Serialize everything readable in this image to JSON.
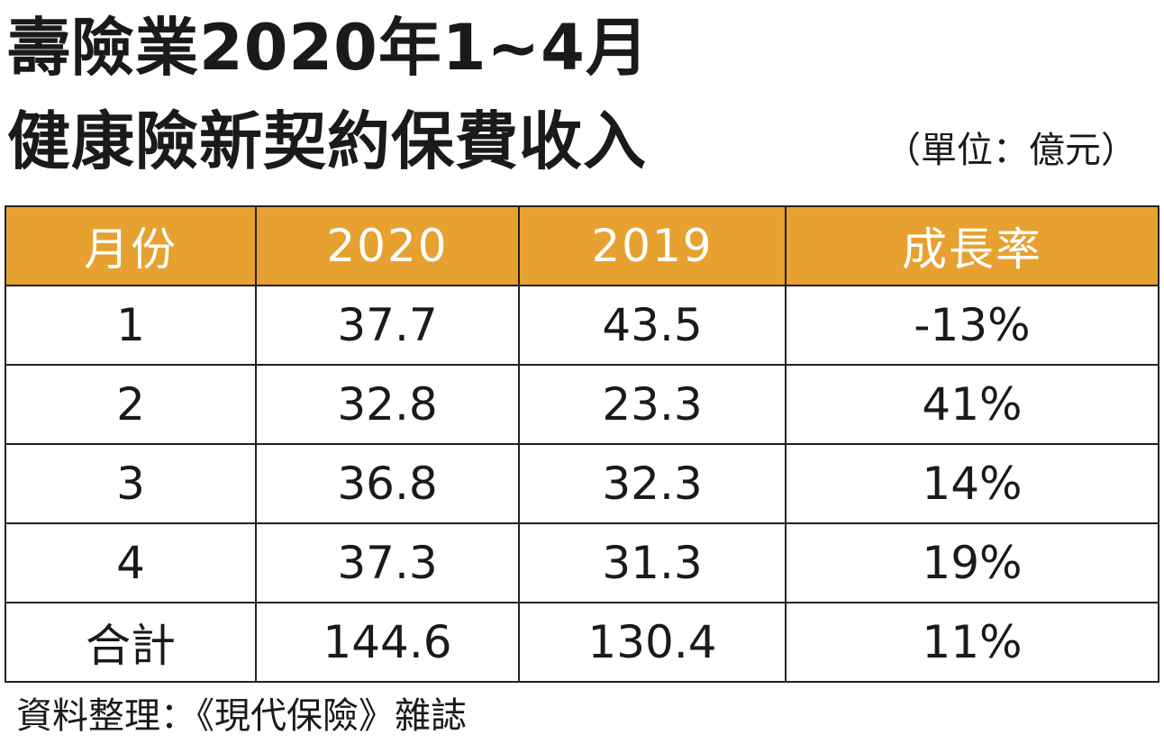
{
  "title": {
    "line1": "壽險業2020年1~4月",
    "line2": "健康險新契約保費收入"
  },
  "unit_note": "（單位：億元）",
  "source_note": "資料整理：《現代保險》雜誌",
  "colors": {
    "header_background": "#e7a130",
    "header_text": "#ffffff",
    "border": "#222222"
  },
  "chart_data": {
    "type": "table",
    "title": "壽險業2020年1~4月 健康險新契約保費收入",
    "unit": "（單位：億元）",
    "columns": [
      "月份",
      "2020",
      "2019",
      "成長率"
    ],
    "rows": [
      [
        "1",
        "37.7",
        "43.5",
        "-13%"
      ],
      [
        "2",
        "32.8",
        "23.3",
        "41%"
      ],
      [
        "3",
        "36.8",
        "32.3",
        "14%"
      ],
      [
        "4",
        "37.3",
        "31.3",
        "19%"
      ],
      [
        "合計",
        "144.6",
        "130.4",
        "11%"
      ]
    ]
  }
}
